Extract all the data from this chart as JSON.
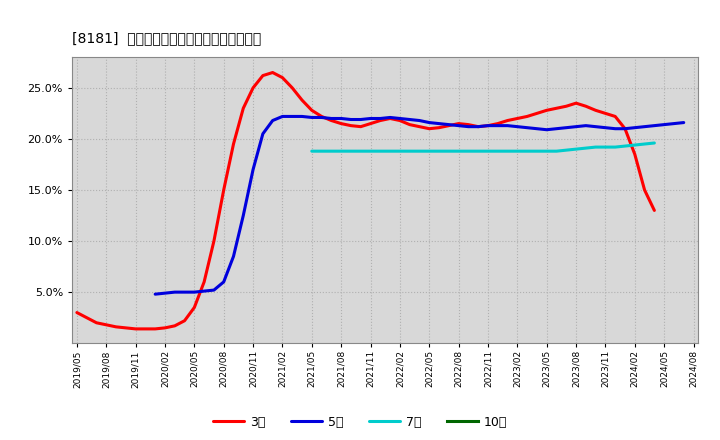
{
  "title": "[8181]  経常利益マージンの標準偏差の推移",
  "background_color": "#ffffff",
  "plot_bg_color": "#d8d8d8",
  "ylim": [
    0.0,
    0.28
  ],
  "yticks": [
    0.05,
    0.1,
    0.15,
    0.2,
    0.25
  ],
  "legend_labels": [
    "3年",
    "5年",
    "7年",
    "10年"
  ],
  "legend_colors": [
    "#ff0000",
    "#0000dd",
    "#00cccc",
    "#006600"
  ],
  "series": {
    "3year": {
      "color": "#ff0000",
      "lw": 2.2,
      "y": [
        0.03,
        0.025,
        0.02,
        0.018,
        0.016,
        0.015,
        0.014,
        0.014,
        0.014,
        0.015,
        0.017,
        0.022,
        0.035,
        0.06,
        0.1,
        0.15,
        0.195,
        0.23,
        0.25,
        0.262,
        0.265,
        0.26,
        0.25,
        0.238,
        0.228,
        0.222,
        0.218,
        0.215,
        0.213,
        0.212,
        0.215,
        0.218,
        0.22,
        0.218,
        0.214,
        0.212,
        0.21,
        0.211,
        0.213,
        0.215,
        0.214,
        0.212,
        0.213,
        0.215,
        0.218,
        0.22,
        0.222,
        0.225,
        0.228,
        0.23,
        0.232,
        0.235,
        0.232,
        0.228,
        0.225,
        0.222,
        0.21,
        0.185,
        0.15,
        0.13,
        null,
        null,
        null,
        null
      ]
    },
    "5year": {
      "color": "#0000dd",
      "lw": 2.2,
      "y": [
        null,
        null,
        null,
        null,
        null,
        null,
        null,
        null,
        0.048,
        0.049,
        0.05,
        0.05,
        0.05,
        0.051,
        0.052,
        0.06,
        0.085,
        0.125,
        0.17,
        0.205,
        0.218,
        0.222,
        0.222,
        0.222,
        0.221,
        0.221,
        0.22,
        0.22,
        0.219,
        0.219,
        0.22,
        0.22,
        0.221,
        0.22,
        0.219,
        0.218,
        0.216,
        0.215,
        0.214,
        0.213,
        0.212,
        0.212,
        0.213,
        0.213,
        0.213,
        0.212,
        0.211,
        0.21,
        0.209,
        0.21,
        0.211,
        0.212,
        0.213,
        0.212,
        0.211,
        0.21,
        0.21,
        0.211,
        0.212,
        0.213,
        0.214,
        0.215,
        0.216,
        null
      ]
    },
    "7year": {
      "color": "#00cccc",
      "lw": 2.2,
      "y": [
        null,
        null,
        null,
        null,
        null,
        null,
        null,
        null,
        null,
        null,
        null,
        null,
        null,
        null,
        null,
        null,
        null,
        null,
        null,
        null,
        null,
        null,
        null,
        null,
        0.188,
        0.188,
        0.188,
        0.188,
        0.188,
        0.188,
        0.188,
        0.188,
        0.188,
        0.188,
        0.188,
        0.188,
        0.188,
        0.188,
        0.188,
        0.188,
        0.188,
        0.188,
        0.188,
        0.188,
        0.188,
        0.188,
        0.188,
        0.188,
        0.188,
        0.188,
        0.189,
        0.19,
        0.191,
        0.192,
        0.192,
        0.192,
        0.193,
        0.194,
        0.195,
        0.196,
        null,
        null,
        null,
        null
      ]
    },
    "10year": {
      "color": "#006600",
      "lw": 2.2,
      "y": []
    }
  },
  "x_tick_labels": [
    "2019/05",
    "2019/08",
    "2019/11",
    "2020/02",
    "2020/05",
    "2020/08",
    "2020/11",
    "2021/02",
    "2021/05",
    "2021/08",
    "2021/11",
    "2022/02",
    "2022/05",
    "2022/08",
    "2022/11",
    "2023/02",
    "2023/05",
    "2023/08",
    "2023/11",
    "2024/02",
    "2024/05",
    "2024/08"
  ],
  "total_pts": 64
}
